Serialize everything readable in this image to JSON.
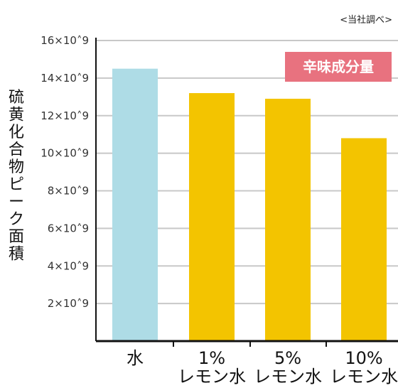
{
  "source_note": "<当社調べ>",
  "badge": {
    "label": "辛味成分量",
    "color": "#e8727f"
  },
  "chart_data": {
    "type": "bar",
    "ylabel": "硫黄化合物ピーク面積",
    "xlabel": "",
    "ylim": [
      0,
      16
    ],
    "y_unit": "×10^9",
    "ytick_values": [
      2,
      4,
      6,
      8,
      10,
      12,
      14,
      16
    ],
    "ytick_labels": [
      "2×10˄9",
      "4×10˄9",
      "6×10˄9",
      "8×10˄9",
      "10×10˄9",
      "12×10˄9",
      "14×10˄9",
      "16×10˄9"
    ],
    "categories": [
      {
        "line1": "水",
        "line2": ""
      },
      {
        "line1": "1%",
        "line2": "レモン水"
      },
      {
        "line1": "5%",
        "line2": "レモン水"
      },
      {
        "line1": "10%",
        "line2": "レモン水"
      }
    ],
    "values": [
      14.5,
      13.2,
      12.9,
      10.8
    ],
    "bar_colors": [
      "#aedce6",
      "#f3c400",
      "#f3c400",
      "#f3c400"
    ],
    "grid": true,
    "grid_color": "#c8c8c8"
  }
}
